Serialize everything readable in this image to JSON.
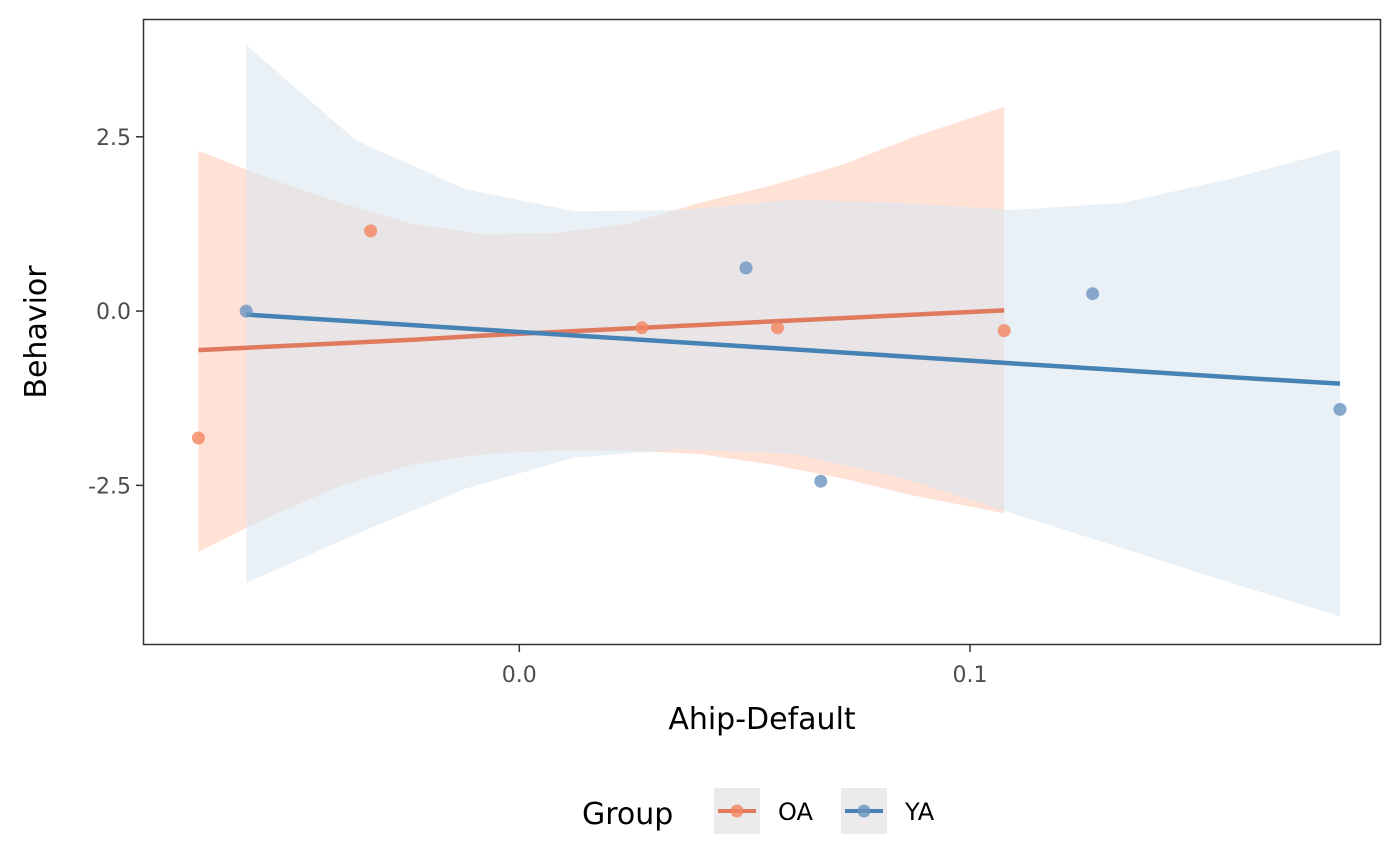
{
  "chart_data": {
    "type": "scatter",
    "xlabel": "Ahip-Default",
    "ylabel": "Behavior",
    "xlim": [
      -0.0835,
      0.1912
    ],
    "ylim": [
      -4.79,
      4.19
    ],
    "x_ticks": [
      0.0,
      0.1
    ],
    "x_tick_labels": [
      "0.0",
      "0.1"
    ],
    "y_ticks": [
      2.5,
      0.0,
      -2.5
    ],
    "y_tick_labels": [
      "2.5",
      "0.0",
      "-2.5"
    ],
    "grid": false,
    "legend": {
      "title": "Group",
      "placement": "bottom",
      "entries": [
        "OA",
        "YA"
      ]
    },
    "series": [
      {
        "name": "OA",
        "color": "#f4845f",
        "line_color": "#e07a5f",
        "band_color": "#ffdccf",
        "points": [
          {
            "x": -0.0712,
            "y": -1.82
          },
          {
            "x": -0.033,
            "y": 1.15
          },
          {
            "x": 0.0272,
            "y": -0.24
          },
          {
            "x": 0.0573,
            "y": -0.24
          },
          {
            "x": 0.1076,
            "y": -0.28
          }
        ],
        "fit": {
          "x": [
            -0.0712,
            -0.0554,
            -0.0395,
            -0.0236,
            -0.0077,
            0.0081,
            0.024,
            0.0399,
            0.0558,
            0.0717,
            0.0876,
            0.1076
          ],
          "y": [
            -0.56,
            -0.51,
            -0.46,
            -0.41,
            -0.35,
            -0.3,
            -0.25,
            -0.2,
            -0.15,
            -0.1,
            -0.05,
            0.01
          ],
          "upper": [
            2.3,
            1.9,
            1.55,
            1.25,
            1.1,
            1.12,
            1.25,
            1.55,
            1.8,
            2.1,
            2.5,
            2.93
          ],
          "lower": [
            -3.45,
            -2.95,
            -2.5,
            -2.2,
            -2.05,
            -2.0,
            -2.0,
            -2.05,
            -2.2,
            -2.4,
            -2.65,
            -2.9
          ]
        }
      },
      {
        "name": "YA",
        "color": "#6b94bf",
        "line_color": "#4682b4",
        "band_color": "#dbe6f0",
        "points": [
          {
            "x": -0.0606,
            "y": 0.0
          },
          {
            "x": 0.0503,
            "y": 0.62
          },
          {
            "x": 0.0669,
            "y": -2.44
          },
          {
            "x": 0.1272,
            "y": 0.25
          },
          {
            "x": 0.1821,
            "y": -1.41
          }
        ],
        "fit": {
          "x": [
            -0.0606,
            -0.0363,
            -0.012,
            0.0123,
            0.0366,
            0.0609,
            0.0852,
            0.1094,
            0.1337,
            0.158,
            0.1821
          ],
          "y": [
            -0.05,
            -0.15,
            -0.25,
            -0.35,
            -0.45,
            -0.55,
            -0.65,
            -0.75,
            -0.85,
            -0.95,
            -1.04
          ],
          "upper": [
            3.82,
            2.45,
            1.75,
            1.43,
            1.45,
            1.6,
            1.55,
            1.45,
            1.55,
            1.9,
            2.32
          ],
          "lower": [
            -3.9,
            -3.2,
            -2.55,
            -2.1,
            -1.98,
            -2.05,
            -2.4,
            -2.9,
            -3.4,
            -3.9,
            -4.38
          ]
        }
      }
    ]
  }
}
